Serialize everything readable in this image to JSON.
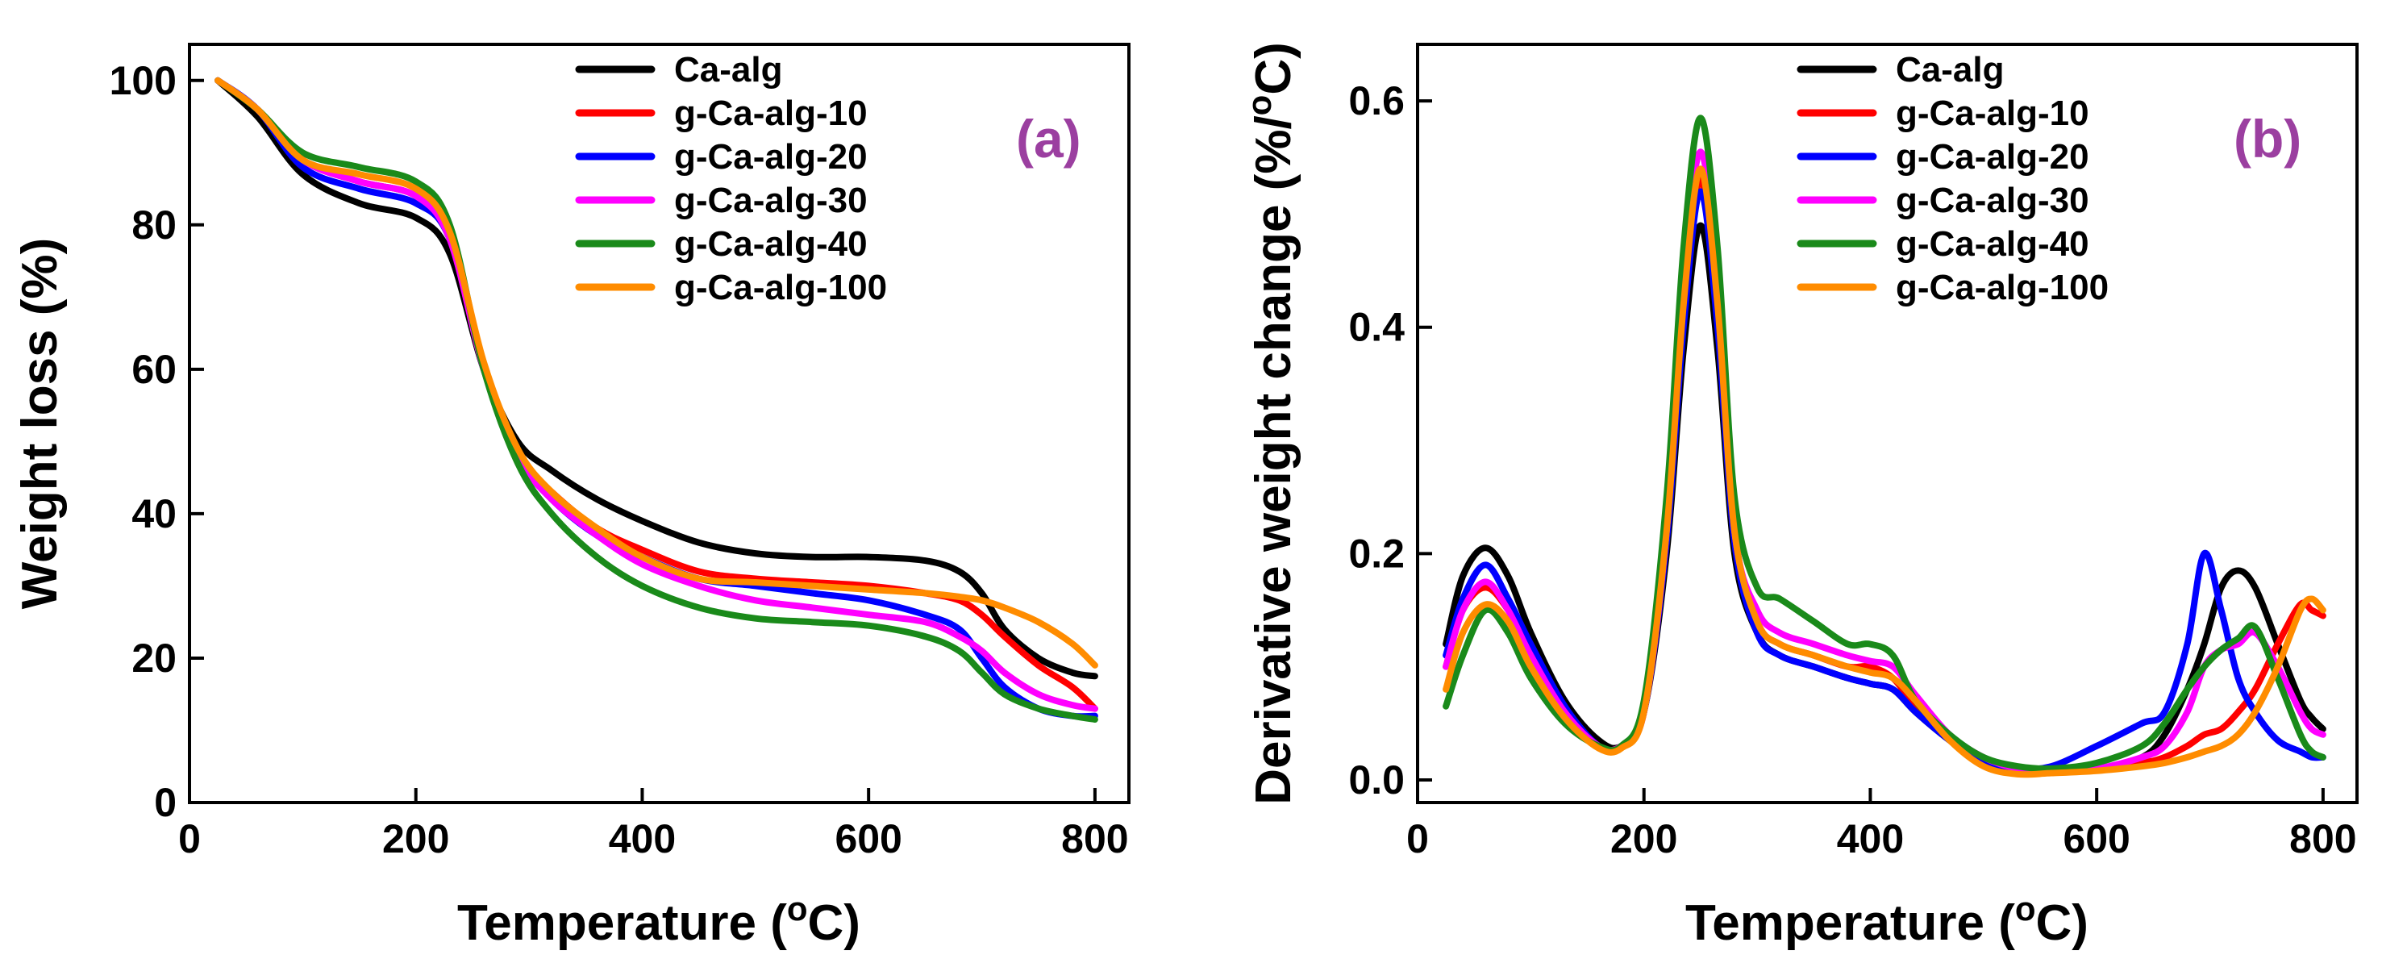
{
  "chart_data": [
    {
      "type": "line",
      "panel_label": "(a)",
      "panel_color": "#9b3fa0",
      "xlabel": "Temperature (",
      "xlabel_sup": "o",
      "xlabel_tail": "C)",
      "ylabel": "Weight loss (%)",
      "xlim": [
        0,
        830
      ],
      "ylim": [
        0,
        105
      ],
      "xticks": [
        0,
        200,
        400,
        600,
        800
      ],
      "yticks": [
        0,
        20,
        40,
        60,
        80,
        100
      ],
      "legend_position": "top-right",
      "x": [
        25,
        60,
        100,
        150,
        200,
        230,
        260,
        290,
        320,
        360,
        400,
        450,
        500,
        550,
        600,
        650,
        680,
        700,
        720,
        750,
        780,
        800
      ],
      "series": [
        {
          "name": "Ca-alg",
          "color": "#000000",
          "values": [
            100,
            95,
            87,
            83,
            81,
            76,
            60,
            50,
            46,
            42,
            39,
            36,
            34.5,
            34,
            34,
            33.5,
            32,
            29,
            24,
            20,
            18,
            17.5
          ]
        },
        {
          "name": "g-Ca-alg-10",
          "color": "#ff0000",
          "values": [
            100,
            96,
            89,
            86,
            84,
            78,
            60,
            48,
            43,
            38,
            35,
            32,
            31,
            30.5,
            30,
            29,
            28,
            26,
            23,
            19,
            16,
            13
          ]
        },
        {
          "name": "g-Ca-alg-20",
          "color": "#0000ff",
          "values": [
            100,
            96,
            88,
            85,
            83,
            78,
            60,
            48,
            42,
            37,
            34,
            31,
            30,
            29,
            28,
            26,
            24,
            20,
            16,
            13,
            12,
            12
          ]
        },
        {
          "name": "g-Ca-alg-30",
          "color": "#ff00ff",
          "values": [
            100,
            96,
            89,
            86,
            84,
            78,
            60,
            48,
            42,
            37,
            33,
            30,
            28,
            27,
            26,
            25,
            23,
            21,
            18,
            15,
            13.5,
            13
          ]
        },
        {
          "name": "g-Ca-alg-40",
          "color": "#1a8a1a",
          "values": [
            100,
            96,
            90,
            88,
            86,
            80,
            60,
            47,
            40,
            34,
            30,
            27,
            25.5,
            25,
            24.5,
            23,
            21,
            18,
            15,
            13,
            12,
            11.5
          ]
        },
        {
          "name": "g-Ca-alg-100",
          "color": "#ff8c00",
          "values": [
            100,
            96,
            89,
            87,
            85,
            79,
            61,
            49,
            43,
            38,
            34,
            31,
            30.5,
            30,
            29.5,
            29,
            28.5,
            28,
            27,
            25,
            22,
            19
          ]
        }
      ]
    },
    {
      "type": "line",
      "panel_label": "(b)",
      "panel_color": "#9b3fa0",
      "xlabel": "Temperature (",
      "xlabel_sup": "o",
      "xlabel_tail": "C)",
      "ylabel": "Derivative weight change (%/",
      "ylabel_sup": "o",
      "ylabel_tail": "C)",
      "xlim": [
        0,
        830
      ],
      "ylim": [
        -0.02,
        0.65
      ],
      "xticks": [
        0,
        200,
        400,
        600,
        800
      ],
      "yticks": [
        "0.0",
        "0.2",
        "0.4",
        "0.6"
      ],
      "legend_position": "top-right",
      "x": [
        25,
        40,
        60,
        80,
        100,
        130,
        160,
        180,
        200,
        220,
        235,
        250,
        265,
        280,
        300,
        320,
        350,
        380,
        400,
        420,
        440,
        470,
        500,
        530,
        560,
        600,
        640,
        660,
        680,
        695,
        710,
        725,
        740,
        760,
        780,
        790,
        800
      ],
      "series": [
        {
          "name": "Ca-alg",
          "color": "#000000",
          "values": [
            0.12,
            0.18,
            0.205,
            0.18,
            0.13,
            0.07,
            0.035,
            0.03,
            0.06,
            0.2,
            0.38,
            0.49,
            0.38,
            0.2,
            0.13,
            0.11,
            0.1,
            0.09,
            0.085,
            0.08,
            0.06,
            0.035,
            0.015,
            0.008,
            0.008,
            0.01,
            0.02,
            0.04,
            0.08,
            0.12,
            0.17,
            0.185,
            0.17,
            0.12,
            0.07,
            0.055,
            0.045
          ]
        },
        {
          "name": "g-Ca-alg-10",
          "color": "#ff0000",
          "values": [
            0.1,
            0.15,
            0.17,
            0.15,
            0.11,
            0.06,
            0.03,
            0.03,
            0.06,
            0.22,
            0.42,
            0.53,
            0.42,
            0.22,
            0.14,
            0.12,
            0.11,
            0.1,
            0.1,
            0.09,
            0.065,
            0.035,
            0.015,
            0.008,
            0.008,
            0.01,
            0.015,
            0.02,
            0.03,
            0.04,
            0.045,
            0.06,
            0.08,
            0.12,
            0.155,
            0.15,
            0.145
          ]
        },
        {
          "name": "g-Ca-alg-20",
          "color": "#0000ff",
          "values": [
            0.11,
            0.16,
            0.19,
            0.16,
            0.12,
            0.065,
            0.03,
            0.03,
            0.06,
            0.21,
            0.4,
            0.52,
            0.4,
            0.21,
            0.13,
            0.11,
            0.1,
            0.09,
            0.085,
            0.08,
            0.06,
            0.035,
            0.015,
            0.01,
            0.012,
            0.03,
            0.05,
            0.06,
            0.12,
            0.2,
            0.15,
            0.09,
            0.06,
            0.035,
            0.025,
            0.02,
            0.02
          ]
        },
        {
          "name": "g-Ca-alg-30",
          "color": "#ff00ff",
          "values": [
            0.1,
            0.15,
            0.175,
            0.15,
            0.11,
            0.06,
            0.03,
            0.03,
            0.06,
            0.22,
            0.44,
            0.555,
            0.44,
            0.22,
            0.15,
            0.13,
            0.12,
            0.11,
            0.105,
            0.1,
            0.075,
            0.04,
            0.02,
            0.01,
            0.008,
            0.01,
            0.02,
            0.03,
            0.06,
            0.1,
            0.115,
            0.12,
            0.13,
            0.1,
            0.06,
            0.045,
            0.04
          ]
        },
        {
          "name": "g-Ca-alg-40",
          "color": "#1a8a1a",
          "values": [
            0.065,
            0.11,
            0.15,
            0.13,
            0.09,
            0.05,
            0.03,
            0.03,
            0.07,
            0.25,
            0.47,
            0.585,
            0.47,
            0.25,
            0.17,
            0.16,
            0.14,
            0.12,
            0.12,
            0.11,
            0.07,
            0.04,
            0.02,
            0.012,
            0.01,
            0.015,
            0.03,
            0.05,
            0.08,
            0.1,
            0.115,
            0.125,
            0.135,
            0.09,
            0.04,
            0.025,
            0.02
          ]
        },
        {
          "name": "g-Ca-alg-100",
          "color": "#ff8c00",
          "values": [
            0.08,
            0.13,
            0.155,
            0.14,
            0.1,
            0.055,
            0.028,
            0.028,
            0.06,
            0.22,
            0.42,
            0.54,
            0.42,
            0.22,
            0.14,
            0.12,
            0.11,
            0.1,
            0.095,
            0.09,
            0.07,
            0.035,
            0.012,
            0.005,
            0.006,
            0.008,
            0.012,
            0.015,
            0.02,
            0.025,
            0.03,
            0.04,
            0.06,
            0.1,
            0.15,
            0.16,
            0.15
          ]
        }
      ]
    }
  ]
}
